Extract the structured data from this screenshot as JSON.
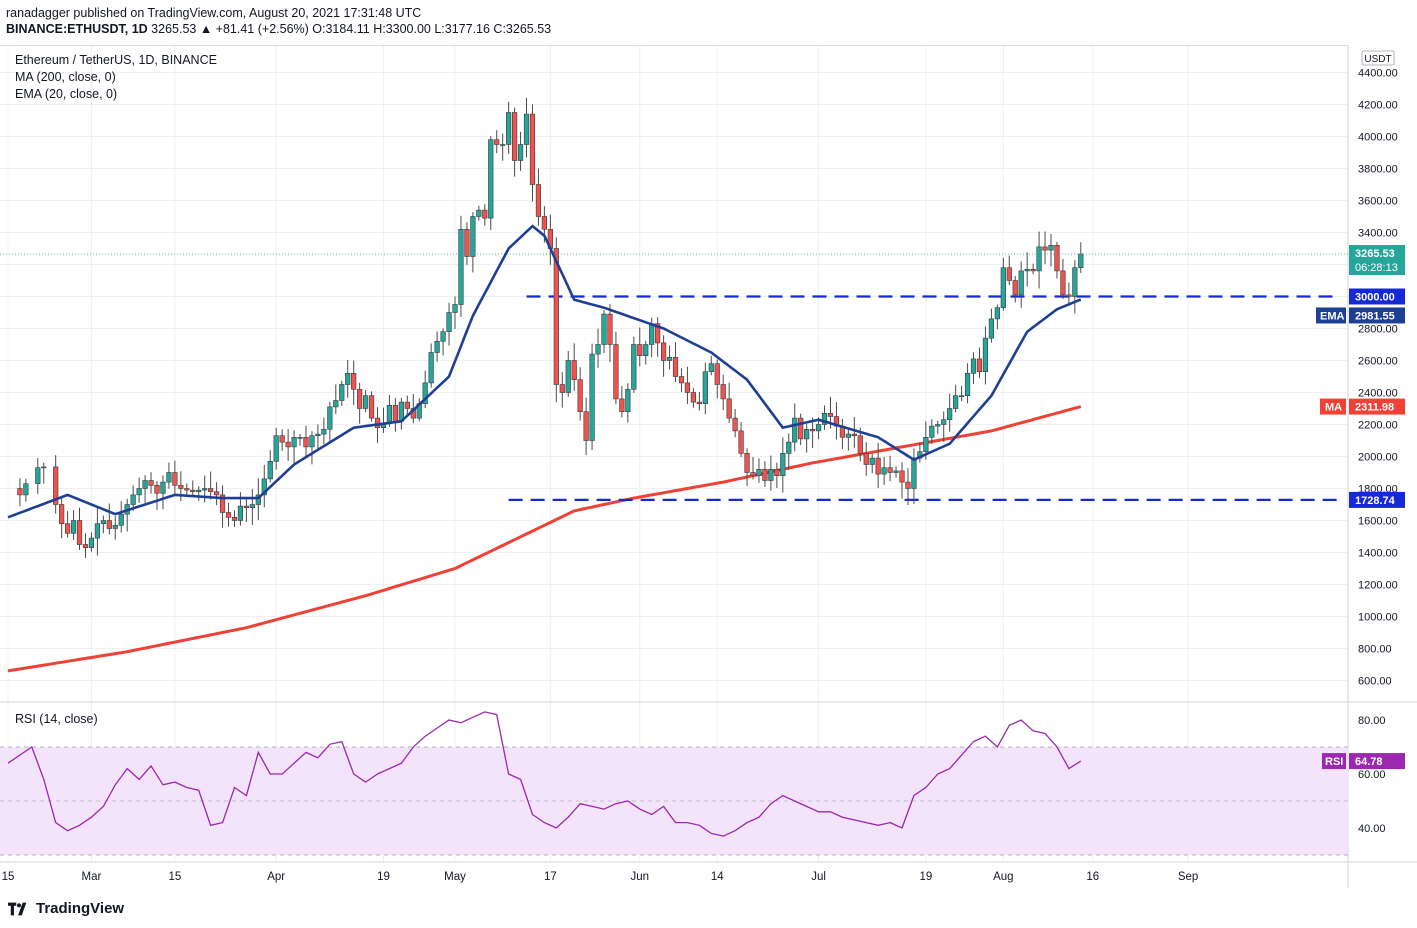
{
  "header": {
    "line1": "ranadagger published on TradingView.com, August 20, 2021 17:31:48 UTC",
    "line2_prefix": "BINANCE:ETHUSDT, 1D",
    "line2_values": "3265.53 ▲ +81.41 (+2.56%) O:3184.11 H:3300.00 L:3177.16 C:3265.53"
  },
  "legend": {
    "title": "Ethereum / TetherUS, 1D, BINANCE",
    "ma": "MA (200, close, 0)",
    "ema": "EMA (20, close, 0)",
    "rsi": "RSI (14, close)"
  },
  "footer": {
    "brand": "TradingView"
  },
  "colors": {
    "up": "#26a69a",
    "down": "#ef5350",
    "ema": "#1e3f94",
    "ma": "#ef4135",
    "rsi": "#9c27b0",
    "rsi_band": "#f3e3fb",
    "level": "#1529d6",
    "grid": "#eef0f3"
  },
  "chart_data": [
    {
      "type": "candlestick",
      "title": "Ethereum / TetherUS, 1D, BINANCE",
      "currency": "USDT",
      "y_ticks": [
        600,
        800,
        1000,
        1200,
        1400,
        1600,
        1800,
        2000,
        2200,
        2400,
        2600,
        2800,
        3000,
        3200,
        3400,
        3600,
        3800,
        4000,
        4200,
        4400
      ],
      "y_tick_labels": [
        "600.00",
        "800.00",
        "1000.00",
        "1200.00",
        "1400.00",
        "1600.00",
        "1800.00",
        "2000.00",
        "2200.00",
        "2400.00",
        "2600.00",
        "2800.00",
        "3000.00",
        "3200.00",
        "3400.00",
        "3600.00",
        "3800.00",
        "4000.00",
        "4200.00",
        "4400.00"
      ],
      "x_ticks": [
        {
          "label": "15",
          "day": 0
        },
        {
          "label": "Mar",
          "day": 14
        },
        {
          "label": "15",
          "day": 28
        },
        {
          "label": "Apr",
          "day": 45
        },
        {
          "label": "19",
          "day": 63
        },
        {
          "label": "May",
          "day": 75
        },
        {
          "label": "17",
          "day": 91
        },
        {
          "label": "Jun",
          "day": 106
        },
        {
          "label": "14",
          "day": 119
        },
        {
          "label": "Jul",
          "day": 136
        },
        {
          "label": "19",
          "day": 154
        },
        {
          "label": "Aug",
          "day": 167
        },
        {
          "label": "16",
          "day": 182
        },
        {
          "label": "Sep",
          "day": 198
        }
      ],
      "levels": [
        {
          "value": 3000,
          "label": "3000.00",
          "start_day": 87
        },
        {
          "value": 1728.74,
          "label": "1728.74",
          "start_day": 84
        }
      ],
      "price_badge": {
        "value": 3265.53,
        "label": "3265.53",
        "countdown": "06:28:13"
      },
      "ema_badge": {
        "name": "EMA",
        "value": "2981.55"
      },
      "ma_badge": {
        "name": "MA",
        "value": "2311.98"
      },
      "ohlc_anchors": [
        [
          0,
          1800
        ],
        [
          2,
          1760
        ],
        [
          3,
          1830
        ],
        [
          5,
          1930
        ],
        [
          6,
          1935
        ],
        [
          8,
          1700
        ],
        [
          9,
          1580
        ],
        [
          10,
          1520
        ],
        [
          11,
          1600
        ],
        [
          12,
          1450
        ],
        [
          13,
          1430
        ],
        [
          14,
          1490
        ],
        [
          15,
          1580
        ],
        [
          16,
          1600
        ],
        [
          17,
          1550
        ],
        [
          18,
          1570
        ],
        [
          19,
          1640
        ],
        [
          20,
          1700
        ],
        [
          21,
          1760
        ],
        [
          22,
          1800
        ],
        [
          23,
          1850
        ],
        [
          24,
          1820
        ],
        [
          25,
          1770
        ],
        [
          26,
          1840
        ],
        [
          27,
          1900
        ],
        [
          28,
          1820
        ],
        [
          29,
          1800
        ],
        [
          30,
          1790
        ],
        [
          31,
          1780
        ],
        [
          32,
          1790
        ],
        [
          33,
          1800
        ],
        [
          34,
          1780
        ],
        [
          35,
          1760
        ],
        [
          36,
          1650
        ],
        [
          37,
          1620
        ],
        [
          38,
          1600
        ],
        [
          39,
          1690
        ],
        [
          40,
          1680
        ],
        [
          41,
          1700
        ],
        [
          42,
          1760
        ],
        [
          43,
          1860
        ],
        [
          44,
          1970
        ],
        [
          45,
          2130
        ],
        [
          46,
          2090
        ],
        [
          47,
          2060
        ],
        [
          48,
          2120
        ],
        [
          49,
          2120
        ],
        [
          50,
          2060
        ],
        [
          51,
          2130
        ],
        [
          52,
          2140
        ],
        [
          53,
          2170
        ],
        [
          54,
          2310
        ],
        [
          55,
          2350
        ],
        [
          56,
          2450
        ],
        [
          57,
          2520
        ],
        [
          58,
          2420
        ],
        [
          59,
          2300
        ],
        [
          60,
          2380
        ],
        [
          61,
          2240
        ],
        [
          62,
          2180
        ],
        [
          63,
          2210
        ],
        [
          64,
          2320
        ],
        [
          65,
          2220
        ],
        [
          66,
          2340
        ],
        [
          67,
          2300
        ],
        [
          68,
          2240
        ],
        [
          69,
          2330
        ],
        [
          70,
          2460
        ],
        [
          71,
          2650
        ],
        [
          72,
          2720
        ],
        [
          73,
          2780
        ],
        [
          74,
          2900
        ],
        [
          75,
          2950
        ],
        [
          76,
          3420
        ],
        [
          77,
          3250
        ],
        [
          78,
          3500
        ],
        [
          79,
          3540
        ],
        [
          80,
          3490
        ],
        [
          81,
          3980
        ],
        [
          82,
          3950
        ],
        [
          83,
          3950
        ],
        [
          84,
          4150
        ],
        [
          85,
          3850
        ],
        [
          86,
          3950
        ],
        [
          87,
          4140
        ],
        [
          88,
          3700
        ],
        [
          89,
          3500
        ],
        [
          90,
          3420
        ],
        [
          91,
          3300
        ],
        [
          92,
          2450
        ],
        [
          93,
          2400
        ],
        [
          94,
          2600
        ],
        [
          95,
          2480
        ],
        [
          96,
          2280
        ],
        [
          97,
          2100
        ],
        [
          98,
          2640
        ],
        [
          99,
          2700
        ],
        [
          100,
          2890
        ],
        [
          101,
          2700
        ],
        [
          102,
          2360
        ],
        [
          103,
          2280
        ],
        [
          104,
          2420
        ],
        [
          105,
          2700
        ],
        [
          106,
          2630
        ],
        [
          107,
          2700
        ],
        [
          108,
          2830
        ],
        [
          109,
          2710
        ],
        [
          110,
          2600
        ],
        [
          111,
          2620
        ],
        [
          112,
          2500
        ],
        [
          113,
          2460
        ],
        [
          114,
          2400
        ],
        [
          115,
          2340
        ],
        [
          116,
          2330
        ],
        [
          117,
          2530
        ],
        [
          118,
          2580
        ],
        [
          119,
          2450
        ],
        [
          120,
          2360
        ],
        [
          121,
          2240
        ],
        [
          122,
          2160
        ],
        [
          123,
          2020
        ],
        [
          124,
          1900
        ],
        [
          125,
          1880
        ],
        [
          126,
          1920
        ],
        [
          127,
          1850
        ],
        [
          128,
          1920
        ],
        [
          129,
          1880
        ],
        [
          130,
          2020
        ],
        [
          131,
          2090
        ],
        [
          132,
          2240
        ],
        [
          133,
          2110
        ],
        [
          134,
          2170
        ],
        [
          135,
          2160
        ],
        [
          136,
          2200
        ],
        [
          137,
          2270
        ],
        [
          138,
          2250
        ],
        [
          139,
          2190
        ],
        [
          140,
          2120
        ],
        [
          141,
          2140
        ],
        [
          142,
          2130
        ],
        [
          143,
          2020
        ],
        [
          144,
          1950
        ],
        [
          145,
          1990
        ],
        [
          146,
          1890
        ],
        [
          147,
          1930
        ],
        [
          148,
          1900
        ],
        [
          149,
          1910
        ],
        [
          150,
          1840
        ],
        [
          151,
          1800
        ],
        [
          152,
          1990
        ],
        [
          153,
          2030
        ],
        [
          154,
          2120
        ],
        [
          155,
          2190
        ],
        [
          156,
          2200
        ],
        [
          157,
          2230
        ],
        [
          158,
          2300
        ],
        [
          159,
          2380
        ],
        [
          160,
          2380
        ],
        [
          161,
          2520
        ],
        [
          162,
          2610
        ],
        [
          163,
          2530
        ],
        [
          164,
          2740
        ],
        [
          165,
          2860
        ],
        [
          166,
          2930
        ],
        [
          167,
          3180
        ],
        [
          168,
          3100
        ],
        [
          169,
          3010
        ],
        [
          170,
          3160
        ],
        [
          171,
          3170
        ],
        [
          172,
          3160
        ],
        [
          173,
          3310
        ],
        [
          174,
          3290
        ],
        [
          175,
          3320
        ],
        [
          176,
          3160
        ],
        [
          177,
          3010
        ],
        [
          178,
          3000
        ],
        [
          179,
          3180
        ],
        [
          180,
          3265.53
        ]
      ],
      "ma200_anchors": [
        [
          0,
          660
        ],
        [
          20,
          780
        ],
        [
          40,
          930
        ],
        [
          60,
          1130
        ],
        [
          75,
          1300
        ],
        [
          85,
          1480
        ],
        [
          95,
          1660
        ],
        [
          105,
          1740
        ],
        [
          120,
          1840
        ],
        [
          135,
          1960
        ],
        [
          150,
          2060
        ],
        [
          165,
          2160
        ],
        [
          180,
          2311.98
        ]
      ],
      "ema20_anchors": [
        [
          0,
          1620
        ],
        [
          10,
          1760
        ],
        [
          18,
          1640
        ],
        [
          28,
          1760
        ],
        [
          36,
          1740
        ],
        [
          42,
          1740
        ],
        [
          48,
          1950
        ],
        [
          58,
          2180
        ],
        [
          66,
          2220
        ],
        [
          74,
          2500
        ],
        [
          78,
          2880
        ],
        [
          84,
          3300
        ],
        [
          88,
          3440
        ],
        [
          90,
          3380
        ],
        [
          95,
          2980
        ],
        [
          100,
          2930
        ],
        [
          110,
          2800
        ],
        [
          118,
          2650
        ],
        [
          124,
          2480
        ],
        [
          130,
          2180
        ],
        [
          136,
          2230
        ],
        [
          146,
          2120
        ],
        [
          152,
          1980
        ],
        [
          158,
          2080
        ],
        [
          165,
          2380
        ],
        [
          171,
          2780
        ],
        [
          176,
          2920
        ],
        [
          180,
          2981.55
        ]
      ]
    },
    {
      "type": "line",
      "title": "RSI (14, close)",
      "y_ticks": [
        40,
        60,
        80
      ],
      "y_tick_labels": [
        "40.00",
        "60.00",
        "80.00"
      ],
      "band": [
        30,
        70
      ],
      "badge": {
        "name": "RSI",
        "value": "64.78"
      },
      "x": [
        0,
        4,
        6,
        8,
        10,
        12,
        14,
        16,
        18,
        20,
        22,
        24,
        26,
        28,
        30,
        32,
        34,
        36,
        38,
        40,
        42,
        44,
        46,
        48,
        50,
        52,
        54,
        56,
        58,
        60,
        62,
        64,
        66,
        68,
        70,
        72,
        74,
        76,
        78,
        80,
        82,
        84,
        86,
        88,
        90,
        92,
        94,
        96,
        98,
        100,
        102,
        104,
        106,
        108,
        110,
        112,
        114,
        116,
        118,
        120,
        122,
        124,
        126,
        128,
        130,
        132,
        134,
        136,
        138,
        140,
        142,
        144,
        146,
        148,
        150,
        152,
        154,
        156,
        158,
        160,
        162,
        164,
        166,
        168,
        170,
        172,
        174,
        176,
        178,
        180
      ],
      "values": [
        64,
        70,
        58,
        42,
        39,
        41,
        44,
        48,
        56,
        62,
        58,
        63,
        56,
        57,
        55,
        54,
        41,
        42,
        55,
        52,
        68,
        60,
        60,
        64,
        68,
        66,
        71,
        72,
        60,
        57,
        60,
        62,
        64,
        70,
        74,
        77,
        80,
        79,
        81,
        83,
        82,
        60,
        58,
        45,
        42,
        40,
        44,
        49,
        48,
        47,
        49,
        50,
        47,
        45,
        48,
        42,
        42,
        41,
        38,
        37,
        39,
        42,
        44,
        49,
        52,
        50,
        48,
        46,
        46,
        44,
        43,
        42,
        41,
        42,
        40,
        52,
        55,
        60,
        62,
        67,
        72,
        74,
        70,
        78,
        80,
        76,
        75,
        70,
        62,
        64.78
      ]
    }
  ]
}
